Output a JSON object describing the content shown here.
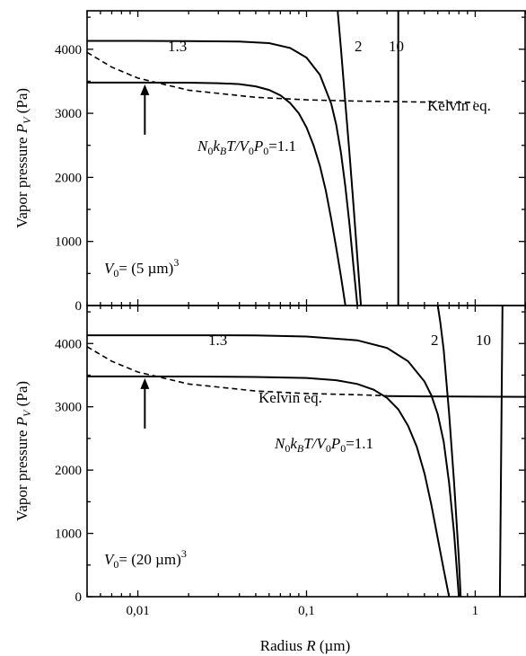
{
  "chart_data": [
    {
      "type": "line",
      "panel": "top",
      "xlabel": "Radius R (µm)",
      "ylabel": "Vapor pressure P_V (Pa)",
      "ylabel_parts": {
        "main": "Vapor pressure ",
        "sym": "P",
        "sub": "V",
        "unit": " (Pa)"
      },
      "xscale": "log",
      "xlim": [
        0.005,
        2
      ],
      "ylim": [
        0,
        4600
      ],
      "x_ticks": [
        0.01,
        0.1,
        1
      ],
      "x_tick_labels": [
        "",
        "",
        ""
      ],
      "y_ticks": [
        0,
        1000,
        2000,
        3000,
        4000
      ],
      "y_tick_labels": [
        "0",
        "1000",
        "2000",
        "3000",
        "4000"
      ],
      "series": [
        {
          "name": "1.1",
          "style": "solid",
          "x": [
            0.005,
            0.01,
            0.02,
            0.03,
            0.04,
            0.05,
            0.06,
            0.07,
            0.08,
            0.09,
            0.1,
            0.11,
            0.12,
            0.13,
            0.14,
            0.15,
            0.16,
            0.17
          ],
          "y": [
            3480,
            3480,
            3478,
            3470,
            3455,
            3420,
            3365,
            3280,
            3160,
            3000,
            2780,
            2500,
            2180,
            1800,
            1350,
            900,
            450,
            0
          ]
        },
        {
          "name": "1.3",
          "style": "solid",
          "x": [
            0.005,
            0.01,
            0.02,
            0.04,
            0.06,
            0.08,
            0.1,
            0.12,
            0.14,
            0.15,
            0.16,
            0.17,
            0.18,
            0.19,
            0.2
          ],
          "y": [
            4130,
            4130,
            4128,
            4120,
            4095,
            4020,
            3870,
            3600,
            3150,
            2820,
            2380,
            1850,
            1250,
            600,
            0
          ]
        },
        {
          "name": "2",
          "style": "solid",
          "x": [
            0.153,
            0.16,
            0.17,
            0.18,
            0.19,
            0.2,
            0.21
          ],
          "y": [
            4600,
            4000,
            3150,
            2350,
            1550,
            750,
            0
          ]
        },
        {
          "name": "10",
          "style": "solid",
          "x": [
            0.35,
            0.35
          ],
          "y": [
            4600,
            0
          ]
        },
        {
          "name": "Kelvin eq.",
          "style": "dashed",
          "x": [
            0.005,
            0.007,
            0.01,
            0.02,
            0.05,
            0.1,
            0.2,
            0.5,
            1
          ],
          "y": [
            3950,
            3720,
            3550,
            3360,
            3250,
            3210,
            3190,
            3175,
            3170
          ]
        }
      ],
      "annotations": {
        "label_13": "1.3",
        "label_2": "2",
        "label_10": "10",
        "kelvin": "Kelvin eq.",
        "ratio": {
          "N": "N",
          "sub0": "0",
          "k": "k",
          "subB": "B",
          "T": "T/",
          "V": "V",
          "P": "P",
          "tail": "=1.1"
        },
        "volume": {
          "V": "V",
          "sub": "0",
          "eq": "= (5 µm)",
          "sup": "3"
        }
      },
      "arrow_points_to": {
        "x": 0.011,
        "y": 3480
      }
    },
    {
      "type": "line",
      "panel": "bottom",
      "xlabel": "Radius R (µm)",
      "ylabel": "Vapor pressure P_V (Pa)",
      "ylabel_parts": {
        "main": "Vapor pressure ",
        "sym": "P",
        "sub": "V",
        "unit": " (Pa)"
      },
      "xscale": "log",
      "xlim": [
        0.005,
        2
      ],
      "ylim": [
        0,
        4600
      ],
      "x_ticks": [
        0.01,
        0.1,
        1
      ],
      "x_tick_labels": [
        "0,01",
        "0,1",
        "1"
      ],
      "y_ticks": [
        0,
        1000,
        2000,
        3000,
        4000
      ],
      "y_tick_labels": [
        "0",
        "1000",
        "2000",
        "3000",
        "4000"
      ],
      "series": [
        {
          "name": "1.1",
          "style": "solid",
          "x": [
            0.005,
            0.01,
            0.02,
            0.05,
            0.1,
            0.15,
            0.2,
            0.25,
            0.3,
            0.35,
            0.4,
            0.45,
            0.5,
            0.55,
            0.6,
            0.65,
            0.7
          ],
          "y": [
            3480,
            3480,
            3478,
            3472,
            3455,
            3420,
            3360,
            3270,
            3140,
            2960,
            2700,
            2370,
            1950,
            1450,
            920,
            430,
            0
          ]
        },
        {
          "name": "1.3",
          "style": "solid",
          "x": [
            0.005,
            0.01,
            0.05,
            0.1,
            0.2,
            0.3,
            0.4,
            0.5,
            0.55,
            0.6,
            0.65,
            0.7,
            0.75,
            0.8
          ],
          "y": [
            4130,
            4130,
            4128,
            4110,
            4050,
            3930,
            3720,
            3400,
            3180,
            2880,
            2450,
            1800,
            1000,
            0
          ]
        },
        {
          "name": "2",
          "style": "solid",
          "x": [
            0.6,
            0.62,
            0.65,
            0.7,
            0.75,
            0.8,
            0.82
          ],
          "y": [
            4600,
            4350,
            3900,
            2900,
            1800,
            600,
            0
          ]
        },
        {
          "name": "10",
          "style": "solid",
          "x": [
            1.45,
            1.4
          ],
          "y": [
            4600,
            0
          ]
        },
        {
          "name": "Kelvin eq.",
          "style": "dashed",
          "x": [
            0.005,
            0.007,
            0.01,
            0.02,
            0.05,
            0.1,
            0.2,
            0.3
          ],
          "y": [
            3950,
            3720,
            3550,
            3360,
            3250,
            3210,
            3190,
            3175
          ]
        },
        {
          "name": "Kelvin eq. (tail)",
          "style": "solid",
          "x": [
            0.3,
            0.5,
            1,
            2
          ],
          "y": [
            3170,
            3165,
            3160,
            3158
          ]
        }
      ],
      "annotations": {
        "label_13": "1.3",
        "label_2": "2",
        "label_10": "10",
        "kelvin": "Kelvin eq.",
        "ratio": {
          "N": "N",
          "sub0": "0",
          "k": "k",
          "subB": "B",
          "T": "T/",
          "V": "V",
          "P": "P",
          "tail": "=1.1"
        },
        "volume": {
          "V": "V",
          "sub": "0",
          "eq": "= (20 µm)",
          "sup": "3"
        }
      },
      "arrow_points_to": {
        "x": 0.011,
        "y": 3480
      }
    }
  ],
  "xlabel_parts": {
    "main": "Radius ",
    "sym": "R",
    "unit": " (µm)"
  }
}
